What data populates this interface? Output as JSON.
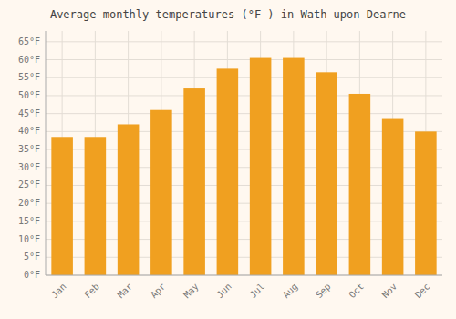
{
  "chart_data": {
    "type": "bar",
    "title": "Average monthly temperatures (°F ) in Wath upon Dearne",
    "categories": [
      "Jan",
      "Feb",
      "Mar",
      "Apr",
      "May",
      "Jun",
      "Jul",
      "Aug",
      "Sep",
      "Oct",
      "Nov",
      "Dec"
    ],
    "values": [
      38.5,
      38.5,
      42,
      46,
      52,
      57.5,
      60.5,
      60.5,
      56.5,
      50.5,
      43.5,
      40
    ],
    "color": "#F0A020",
    "ylim": [
      0,
      68
    ],
    "yticks": [
      {
        "value": 0,
        "label": "0°F"
      },
      {
        "value": 5,
        "label": "5°F"
      },
      {
        "value": 10,
        "label": "10°F"
      },
      {
        "value": 15,
        "label": "15°F"
      },
      {
        "value": 20,
        "label": "20°F"
      },
      {
        "value": 25,
        "label": "25°F"
      },
      {
        "value": 30,
        "label": "30°F"
      },
      {
        "value": 35,
        "label": "35°F"
      },
      {
        "value": 40,
        "label": "40°F"
      },
      {
        "value": 45,
        "label": "45°F"
      },
      {
        "value": 50,
        "label": "50°F"
      },
      {
        "value": 55,
        "label": "55°F"
      },
      {
        "value": 60,
        "label": "60°F"
      },
      {
        "value": 65,
        "label": "65°F"
      }
    ],
    "grid": true
  }
}
